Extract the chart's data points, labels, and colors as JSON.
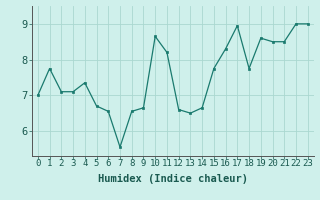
{
  "x": [
    0,
    1,
    2,
    3,
    4,
    5,
    6,
    7,
    8,
    9,
    10,
    11,
    12,
    13,
    14,
    15,
    16,
    17,
    18,
    19,
    20,
    21,
    22,
    23
  ],
  "y": [
    7.0,
    7.75,
    7.1,
    7.1,
    7.35,
    6.7,
    6.55,
    5.55,
    6.55,
    6.65,
    8.65,
    8.2,
    6.6,
    6.5,
    6.65,
    7.75,
    8.3,
    8.95,
    7.75,
    8.6,
    8.5,
    8.5,
    9.0,
    9.0
  ],
  "xlabel": "Humidex (Indice chaleur)",
  "ylim": [
    5.3,
    9.5
  ],
  "xlim": [
    -0.5,
    23.5
  ],
  "yticks": [
    6,
    7,
    8,
    9
  ],
  "xticks": [
    0,
    1,
    2,
    3,
    4,
    5,
    6,
    7,
    8,
    9,
    10,
    11,
    12,
    13,
    14,
    15,
    16,
    17,
    18,
    19,
    20,
    21,
    22,
    23
  ],
  "line_color": "#1a7a6e",
  "marker_color": "#1a7a6e",
  "bg_color": "#cff0eb",
  "grid_color": "#aad8d0",
  "tick_label_fontsize": 6.5,
  "xlabel_fontsize": 7.5
}
